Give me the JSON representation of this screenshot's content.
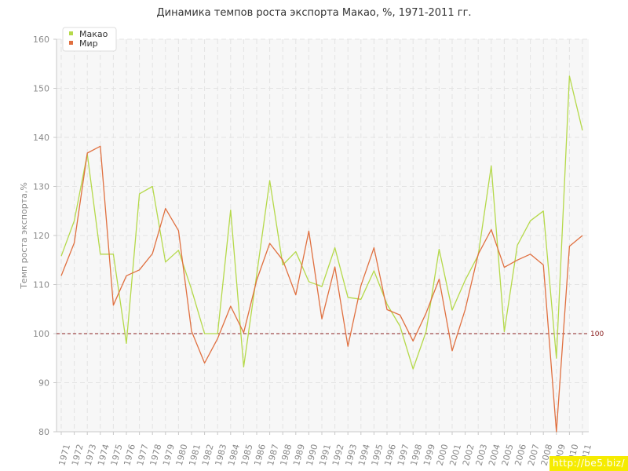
{
  "title": "Динамика темпов роста экспорта Макао, %, 1971-2011 гг.",
  "watermark": "http://be5.biz/",
  "colors": {
    "macao": "#b5d94a",
    "world": "#e07040",
    "reference": "#8b2020",
    "grid": "#e3e3e3",
    "plot_bg": "#f7f7f7"
  },
  "chart_data": {
    "type": "line",
    "title": "Динамика темпов роста экспорта Макао, %, 1971-2011 гг.",
    "ylabel": "Темп роста экспорта,%",
    "xlabel": "",
    "ylim": [
      80,
      160
    ],
    "yticks": [
      80,
      90,
      100,
      110,
      120,
      130,
      140,
      150,
      160
    ],
    "grid": true,
    "legend_position": "top-left",
    "reference_line": {
      "value": 100,
      "label": "100"
    },
    "categories": [
      "1971",
      "1972",
      "1973",
      "1974",
      "1975",
      "1976",
      "1977",
      "1978",
      "1979",
      "1980",
      "1981",
      "1982",
      "1983",
      "1984",
      "1985",
      "1986",
      "1987",
      "1988",
      "1989",
      "1990",
      "1991",
      "1992",
      "1993",
      "1994",
      "1995",
      "1996",
      "1997",
      "1998",
      "1999",
      "2000",
      "2001",
      "2002",
      "2003",
      "2004",
      "2005",
      "2006",
      "2007",
      "2008",
      "2009",
      "2010",
      "2011"
    ],
    "series": [
      {
        "name": "Макао",
        "color": "#b5d94a",
        "values": [
          115.8,
          123,
          136.6,
          116.2,
          116.2,
          98,
          128.5,
          130,
          114.6,
          117,
          109,
          100,
          100,
          125.2,
          93.2,
          112,
          131.2,
          114,
          116.7,
          110.6,
          109.6,
          117.5,
          107.4,
          107,
          112.8,
          106,
          101.5,
          92.8,
          100.4,
          117.2,
          104.8,
          110.9,
          116,
          134.2,
          100.4,
          118,
          123,
          125,
          95,
          152.5,
          141.4
        ]
      },
      {
        "name": "Мир",
        "color": "#e07040",
        "values": [
          111.8,
          118.5,
          136.8,
          138.2,
          105.8,
          111.8,
          113,
          116.3,
          125.5,
          121,
          100.5,
          94,
          99,
          105.6,
          100.2,
          110.9,
          118.4,
          115,
          107.9,
          120.9,
          103,
          113.6,
          97.4,
          109.8,
          117.5,
          104.9,
          103.8,
          98.5,
          104.2,
          111.1,
          96.5,
          104.9,
          116.2,
          121.2,
          113.5,
          115,
          116.2,
          114,
          80,
          117.8,
          120
        ]
      }
    ]
  }
}
